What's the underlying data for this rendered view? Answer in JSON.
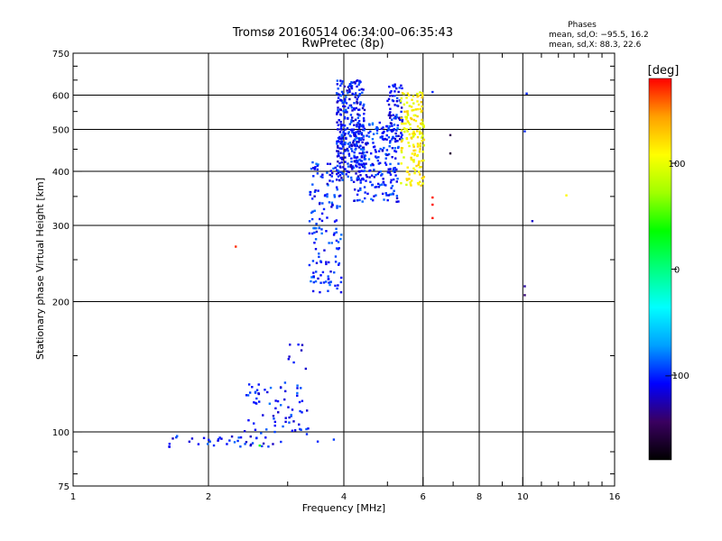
{
  "chart_data": {
    "type": "scatter",
    "title": "Tromsø 20160514 06:34:00–06:35:43",
    "subtitle": "RwPretec (8p)",
    "xlabel": "Frequency [MHz]",
    "ylabel": "Stationary phase Virtual Height [km]",
    "x_scale": "log",
    "y_scale": "log",
    "xlim": [
      1,
      16
    ],
    "ylim": [
      75,
      750
    ],
    "x_ticks": [
      "1",
      "2",
      "4",
      "6",
      "8",
      "10",
      "16"
    ],
    "y_ticks": [
      "75",
      "100",
      "200",
      "300",
      "400",
      "500",
      "600",
      "750"
    ],
    "grid": true,
    "phase_info": {
      "heading": "Phases",
      "line_o": "mean, sd,O: −95.5, 16.2",
      "line_x": "mean, sd,X:  88.3, 22.6"
    },
    "colorbar": {
      "label": "[deg]",
      "range": [
        -180,
        180
      ],
      "ticks": [
        "100",
        "0",
        "−100"
      ],
      "tick_values": [
        100,
        0,
        -100
      ],
      "colors": [
        "#000000",
        "#3a0060",
        "#0000ff",
        "#00a0ff",
        "#00ffff",
        "#00ff80",
        "#00ff00",
        "#a0ff00",
        "#ffff00",
        "#ffa000",
        "#ff0000"
      ]
    },
    "clusters": [
      {
        "phase": -105,
        "seed": 11,
        "count": 40,
        "x": [
          1.6,
          2.95
        ],
        "y": [
          92,
          98
        ]
      },
      {
        "phase": -100,
        "seed": 12,
        "count": 70,
        "x": [
          2.4,
          3.35
        ],
        "y": [
          98,
          130
        ]
      },
      {
        "phase": -105,
        "seed": 13,
        "count": 8,
        "x": [
          3.0,
          3.3
        ],
        "y": [
          138,
          162
        ]
      },
      {
        "phase": -100,
        "seed": 14,
        "count": 150,
        "x": [
          3.35,
          3.95
        ],
        "y": [
          210,
          420
        ]
      },
      {
        "phase": -105,
        "seed": 15,
        "count": 320,
        "x": [
          3.85,
          4.45
        ],
        "y": [
          380,
          650
        ]
      },
      {
        "phase": -100,
        "seed": 16,
        "count": 240,
        "x": [
          4.2,
          5.3
        ],
        "y": [
          340,
          520
        ]
      },
      {
        "phase": -105,
        "seed": 17,
        "count": 70,
        "x": [
          5.0,
          5.4
        ],
        "y": [
          470,
          640
        ]
      },
      {
        "phase": 110,
        "seed": 18,
        "count": 160,
        "x": [
          5.35,
          6.05
        ],
        "y": [
          370,
          610
        ]
      }
    ],
    "points": [
      {
        "x": 2.3,
        "y": 268,
        "phase": 170
      },
      {
        "x": 6.3,
        "y": 348,
        "phase": 175
      },
      {
        "x": 6.3,
        "y": 335,
        "phase": 178
      },
      {
        "x": 6.3,
        "y": 312,
        "phase": 176
      },
      {
        "x": 6.3,
        "y": 610,
        "phase": -100
      },
      {
        "x": 6.9,
        "y": 485,
        "phase": -150
      },
      {
        "x": 6.9,
        "y": 440,
        "phase": -160
      },
      {
        "x": 10.2,
        "y": 605,
        "phase": -100
      },
      {
        "x": 10.1,
        "y": 495,
        "phase": -100
      },
      {
        "x": 10.1,
        "y": 217,
        "phase": -130
      },
      {
        "x": 10.1,
        "y": 207,
        "phase": -140
      },
      {
        "x": 10.5,
        "y": 307,
        "phase": -120
      },
      {
        "x": 12.5,
        "y": 352,
        "phase": 110
      },
      {
        "x": 2.6,
        "y": 93,
        "phase": 30
      },
      {
        "x": 3.5,
        "y": 95,
        "phase": -100
      },
      {
        "x": 3.8,
        "y": 96,
        "phase": -95
      }
    ]
  }
}
